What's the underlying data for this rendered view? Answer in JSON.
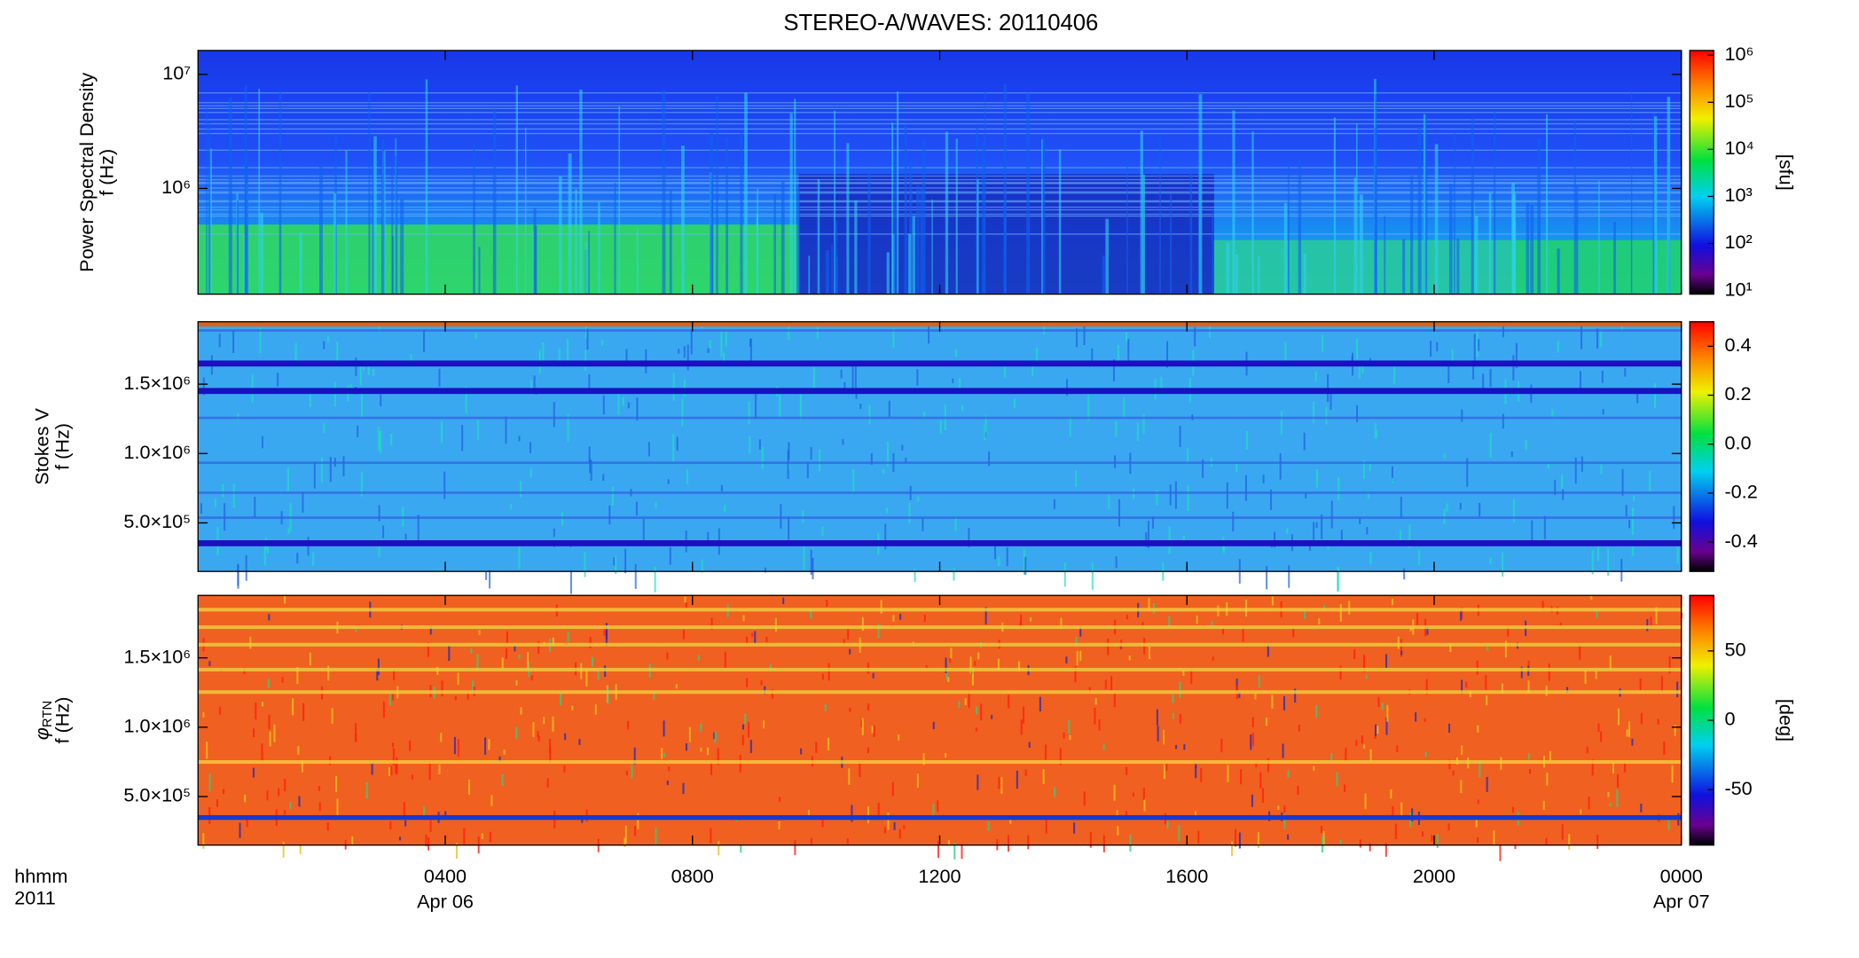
{
  "chart_data": [
    {
      "type": "heatmap",
      "title": "STEREO-A/WAVES: 20110406",
      "ylabel": "Power Spectral Density",
      "ylabel_unit": "f (Hz)",
      "ylog": true,
      "ylim": [
        118000,
        16200000
      ],
      "yticks": [
        {
          "value": 1000000,
          "label": "10⁶"
        },
        {
          "value": 10000000,
          "label": "10⁷"
        }
      ],
      "clog": true,
      "clim": [
        8.4,
        1260000
      ],
      "cticks": [
        {
          "value": 10,
          "label": "10¹"
        },
        {
          "value": 100,
          "label": "10²"
        },
        {
          "value": 1000,
          "label": "10³"
        },
        {
          "value": 10000,
          "label": "10⁴"
        },
        {
          "value": 100000,
          "label": "10⁵"
        },
        {
          "value": 1000000,
          "label": "10⁶"
        }
      ],
      "clabel": "[sfu]",
      "texture": "psd"
    },
    {
      "type": "heatmap",
      "ylabel": "Stokes V",
      "ylabel_unit": "f (Hz)",
      "ylog": false,
      "ylim": [
        150000,
        1950000
      ],
      "yticks": [
        {
          "value": 500000,
          "label": "5.0×10⁵"
        },
        {
          "value": 1000000,
          "label": "1.0×10⁶"
        },
        {
          "value": 1500000,
          "label": "1.5×10⁶"
        }
      ],
      "clog": false,
      "clim": [
        -0.52,
        0.5
      ],
      "cticks": [
        {
          "value": -0.4,
          "label": "-0.4"
        },
        {
          "value": -0.2,
          "label": "-0.2"
        },
        {
          "value": 0,
          "label": "0.0"
        },
        {
          "value": 0.2,
          "label": "0.2"
        },
        {
          "value": 0.4,
          "label": "0.4"
        }
      ],
      "texture": "stokes"
    },
    {
      "type": "heatmap",
      "ylabel": "φ",
      "ylabel_subscript": "RTN",
      "ylabel_unit": "f (Hz)",
      "ylog": false,
      "ylim": [
        150000,
        1950000
      ],
      "yticks": [
        {
          "value": 500000,
          "label": "5.0×10⁵"
        },
        {
          "value": 1000000,
          "label": "1.0×10⁶"
        },
        {
          "value": 1500000,
          "label": "1.5×10⁶"
        }
      ],
      "clog": false,
      "clim": [
        -90,
        90
      ],
      "cticks": [
        -50,
        0,
        50
      ],
      "clabel": "[deg]",
      "texture": "phi",
      "xlim": [
        0,
        24
      ],
      "xticks": [
        {
          "value": 4,
          "label": "0400"
        },
        {
          "value": 8,
          "label": "0800"
        },
        {
          "value": 12,
          "label": "1200"
        },
        {
          "value": 16,
          "label": "1600"
        },
        {
          "value": 20,
          "label": "2000"
        },
        {
          "value": 24,
          "label": "0000"
        }
      ],
      "x_unit": "hhmm",
      "year": "2011",
      "dates": [
        {
          "value": 4,
          "label": "Apr 06"
        },
        {
          "value": 24,
          "label": "Apr 07"
        }
      ]
    }
  ]
}
